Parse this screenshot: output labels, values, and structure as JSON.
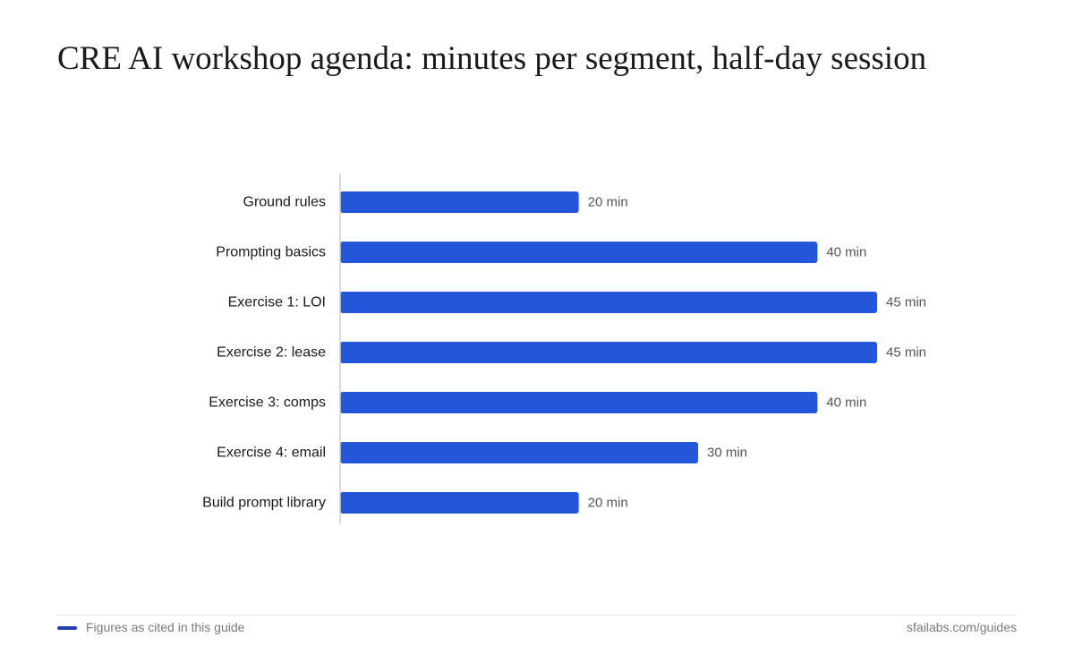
{
  "colors": {
    "bar": "#2456d9",
    "footer_swatch": "#1e40af",
    "label_text": "#1a1a1a",
    "value_text": "#555555",
    "axis_line": "#cfcfcf"
  },
  "footer": {
    "note": "Figures as cited in this guide",
    "source": "sfailabs.com/guides"
  },
  "chart_data": {
    "type": "bar",
    "orientation": "horizontal",
    "title": "CRE AI workshop agenda: minutes per segment, half-day session",
    "xlabel": "",
    "ylabel": "",
    "unit_suffix": " min",
    "xlim": [
      0,
      45
    ],
    "grid": false,
    "categories": [
      "Ground rules",
      "Prompting basics",
      "Exercise 1: LOI",
      "Exercise 2: lease",
      "Exercise 3: comps",
      "Exercise 4: email",
      "Build prompt library"
    ],
    "values": [
      20,
      40,
      45,
      45,
      40,
      30,
      20
    ],
    "data_labels": [
      "20 min",
      "40 min",
      "45 min",
      "45 min",
      "40 min",
      "30 min",
      "20 min"
    ]
  }
}
